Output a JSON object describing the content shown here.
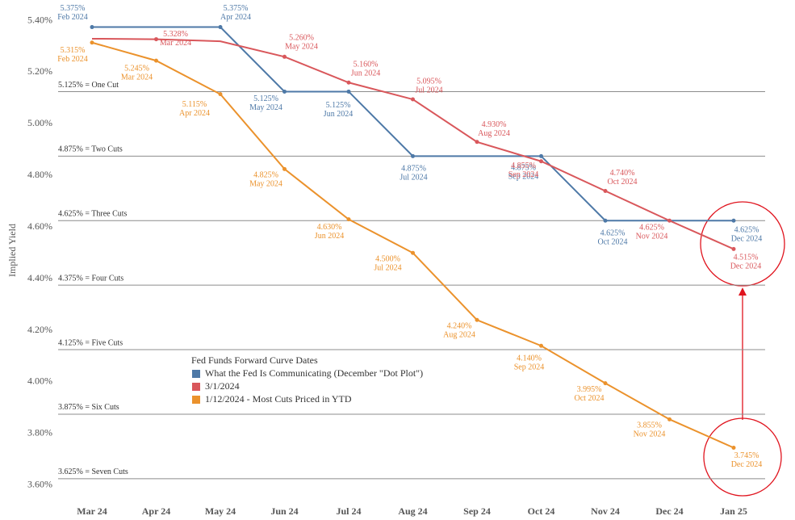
{
  "chart_data": {
    "type": "line",
    "y_label": "Implied Yield",
    "categories": [
      "Mar 24",
      "Apr 24",
      "May 24",
      "Jun 24",
      "Jul 24",
      "Aug 24",
      "Sep 24",
      "Oct 24",
      "Nov 24",
      "Dec 24",
      "Jan 25"
    ],
    "ylim": [
      3.54,
      5.48
    ],
    "yticks": [
      {
        "value": 3.6,
        "label": "3.60%"
      },
      {
        "value": 3.8,
        "label": "3.80%"
      },
      {
        "value": 4.0,
        "label": "4.00%"
      },
      {
        "value": 4.2,
        "label": "4.20%"
      },
      {
        "value": 4.4,
        "label": "4.40%"
      },
      {
        "value": 4.6,
        "label": "4.60%"
      },
      {
        "value": 4.8,
        "label": "4.80%"
      },
      {
        "value": 5.0,
        "label": "5.00%"
      },
      {
        "value": 5.2,
        "label": "5.20%"
      },
      {
        "value": 5.4,
        "label": "5.40%"
      }
    ],
    "grid": false,
    "reference_lines": [
      {
        "value": 5.125,
        "label": "5.125% = One Cut"
      },
      {
        "value": 4.875,
        "label": "4.875% = Two Cuts"
      },
      {
        "value": 4.625,
        "label": "4.625% = Three Cuts"
      },
      {
        "value": 4.375,
        "label": "4.375% = Four Cuts"
      },
      {
        "value": 4.125,
        "label": "4.125% = Five Cuts"
      },
      {
        "value": 3.875,
        "label": "3.875% = Six Cuts"
      },
      {
        "value": 3.625,
        "label": "3.625% = Seven Cuts"
      }
    ],
    "legend_title": "Fed Funds Forward Curve Dates",
    "series": [
      {
        "name": "What the Fed Is Communicating (December \"Dot Plot\")",
        "color": "#4e79a7",
        "values": [
          5.375,
          5.375,
          5.375,
          5.125,
          5.125,
          4.875,
          4.875,
          4.875,
          4.625,
          4.625,
          4.625
        ],
        "value_labels": [
          "5.375%",
          null,
          "5.375%",
          "5.125%",
          "5.125%",
          "4.875%",
          null,
          "4.875%",
          "4.625%",
          null,
          "4.625%"
        ],
        "point_labels": [
          "Feb 2024",
          null,
          "Apr 2024",
          "May 2024",
          "Jun 2024",
          "Jul 2024",
          null,
          "Sep 2024",
          "Oct 2024",
          null,
          "Dec 2024"
        ]
      },
      {
        "name": "3/1/2024",
        "color": "#d9575b",
        "values": [
          5.33,
          5.328,
          5.32,
          5.26,
          5.16,
          5.095,
          4.93,
          4.855,
          4.74,
          4.625,
          4.515
        ],
        "value_labels": [
          null,
          "5.328%",
          null,
          "5.260%",
          "5.160%",
          "5.095%",
          "4.930%",
          "4.855%",
          "4.740%",
          "4.625%",
          "4.515%"
        ],
        "point_labels": [
          null,
          "Mar 2024",
          null,
          "May 2024",
          "Jun 2024",
          "Jul 2024",
          "Aug 2024",
          "Sep 2024",
          "Oct 2024",
          "Nov 2024",
          "Dec 2024"
        ]
      },
      {
        "name": "1/12/2024 - Most Cuts Priced in YTD",
        "color": "#eb922c",
        "values": [
          5.315,
          5.245,
          5.115,
          4.825,
          4.63,
          4.5,
          4.24,
          4.14,
          3.995,
          3.855,
          3.745
        ],
        "value_labels": [
          "5.315%",
          "5.245%",
          "5.115%",
          "4.825%",
          "4.630%",
          "4.500%",
          "4.240%",
          "4.140%",
          "3.995%",
          "3.855%",
          "3.745%"
        ],
        "point_labels": [
          "Feb 2024",
          "Mar 2024",
          "Apr 2024",
          "May 2024",
          "Jun 2024",
          "Jul 2024",
          "Aug 2024",
          "Sep 2024",
          "Oct 2024",
          "Nov 2024",
          "Dec 2024"
        ]
      }
    ]
  }
}
